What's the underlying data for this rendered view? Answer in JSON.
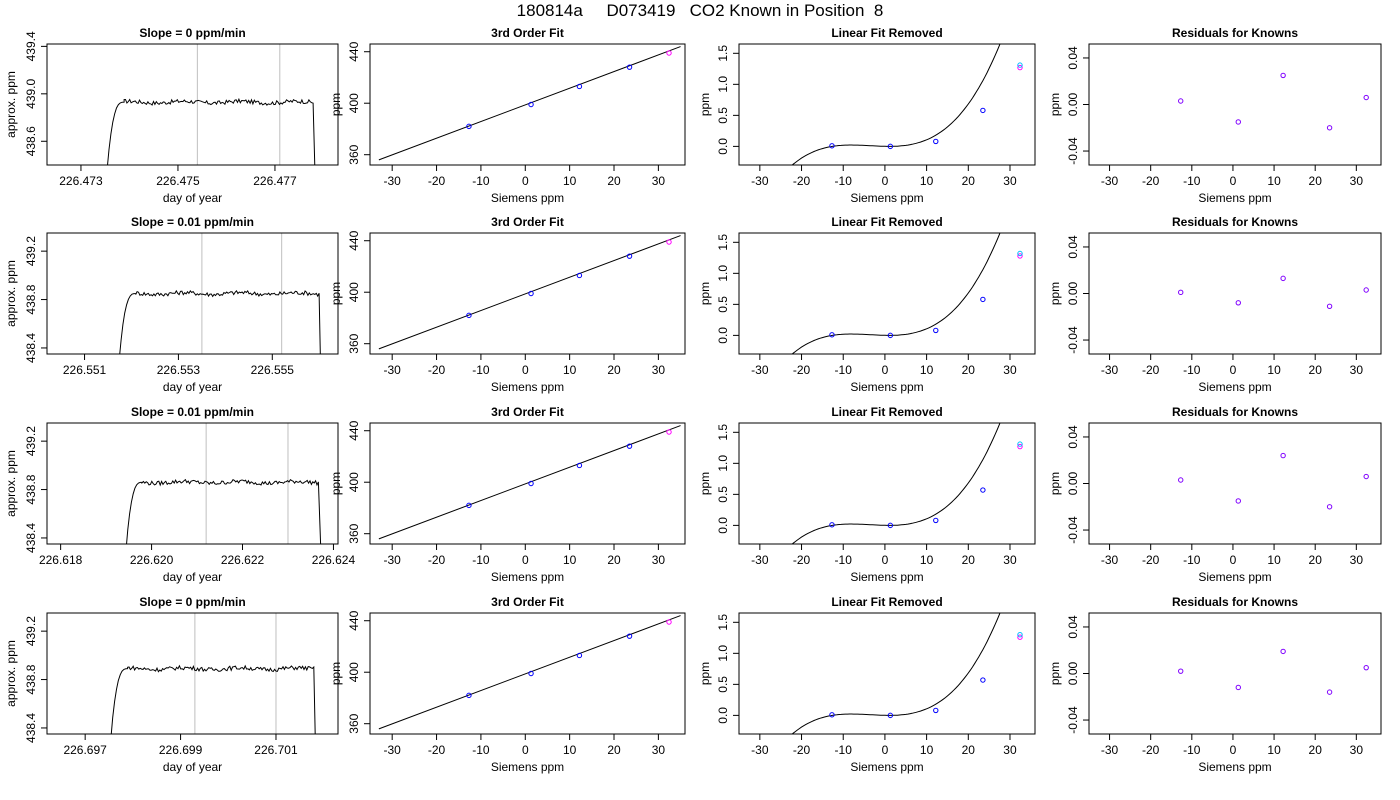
{
  "page_title": "180814a     D073419   CO2 Known in Position  8",
  "colors": {
    "trace": "#000000",
    "vline": "#bebebe",
    "point_blue": "#0000ff",
    "point_magenta": "#ff00ff",
    "point_cyan": "#00bfff",
    "point_purple": "#8000ff"
  },
  "chart_data": [
    {
      "row": 1,
      "panels": [
        {
          "type": "line",
          "title": "Slope =  0  ppm/min",
          "xlabel": "day of year",
          "ylabel": "approx. ppm",
          "xlim": [
            226.4723,
            226.4783
          ],
          "ylim": [
            438.4,
            439.42
          ],
          "xticks": [
            "226.473",
            "226.475",
            "226.477"
          ],
          "yticks": [
            "438.6",
            "439.0",
            "439.4"
          ],
          "vlines": [
            226.4754,
            226.4771
          ],
          "trace": {
            "start": 226.4735,
            "rise_end": 226.4738,
            "end": 226.4778,
            "level": 438.93
          }
        },
        {
          "type": "scatter_line",
          "title": "3rd Order Fit",
          "xlabel": "Siemens ppm",
          "ylabel": "ppm",
          "xlim": [
            -35,
            36
          ],
          "ylim": [
            352,
            446
          ],
          "xticks": [
            "-30",
            "-20",
            "-10",
            "0",
            "10",
            "20",
            "30"
          ],
          "yticks": [
            "360",
            "400",
            "440"
          ],
          "line": {
            "x": [
              -33,
              35
            ],
            "y": [
              356,
              444
            ]
          },
          "points": [
            {
              "x": -12.7,
              "y": 382
            },
            {
              "x": 1.3,
              "y": 399
            },
            {
              "x": 12.2,
              "y": 413
            },
            {
              "x": 23.5,
              "y": 428
            },
            {
              "x": 32.4,
              "y": 439
            }
          ]
        },
        {
          "type": "scatter_line",
          "title": "Linear Fit Removed",
          "xlabel": "Siemens ppm",
          "ylabel": "ppm",
          "xlim": [
            -35,
            36
          ],
          "ylim": [
            -0.3,
            1.65
          ],
          "xticks": [
            "-30",
            "-20",
            "-10",
            "0",
            "10",
            "20",
            "30"
          ],
          "yticks": [
            "0.0",
            "0.5",
            "1.0",
            "1.5"
          ],
          "curve": {
            "x0": 1,
            "a": 5.8e-05,
            "b": 0.00079
          },
          "points": [
            {
              "x": -12.7,
              "y": 0.01
            },
            {
              "x": 1.3,
              "y": 0.0
            },
            {
              "x": 12.2,
              "y": 0.08
            },
            {
              "x": 23.5,
              "y": 0.58
            },
            {
              "x": 32.4,
              "y": 1.27
            },
            {
              "x": 32.4,
              "y": 1.31
            }
          ]
        },
        {
          "type": "scatter",
          "title": "Residuals for Knowns",
          "xlabel": "Siemens ppm",
          "ylabel": "ppm",
          "xlim": [
            -35,
            36
          ],
          "ylim": [
            -0.052,
            0.052
          ],
          "xticks": [
            "-30",
            "-20",
            "-10",
            "0",
            "10",
            "20",
            "30"
          ],
          "yticks": [
            "-0.04",
            "0.00",
            "0.04"
          ],
          "points": [
            {
              "x": -12.7,
              "y": 0.003
            },
            {
              "x": 1.3,
              "y": -0.015
            },
            {
              "x": 12.2,
              "y": 0.025
            },
            {
              "x": 23.5,
              "y": -0.02
            },
            {
              "x": 32.4,
              "y": 0.006
            }
          ]
        }
      ]
    },
    {
      "row": 2,
      "panels": [
        {
          "type": "line",
          "title": "Slope =  0.01  ppm/min",
          "xlabel": "day of year",
          "ylabel": "approx. ppm",
          "xlim": [
            226.5502,
            226.5564
          ],
          "ylim": [
            438.35,
            439.35
          ],
          "xticks": [
            "226.551",
            "226.553",
            "226.555"
          ],
          "yticks": [
            "438.4",
            "438.8",
            "439.2"
          ],
          "vlines": [
            226.5535,
            226.5552
          ],
          "trace": {
            "start": 226.5517,
            "rise_end": 226.552,
            "end": 226.556,
            "level": 438.85
          }
        },
        {
          "type": "scatter_line",
          "title": "3rd Order Fit",
          "xlabel": "Siemens ppm",
          "ylabel": "ppm",
          "xlim": [
            -35,
            36
          ],
          "ylim": [
            352,
            446
          ],
          "xticks": [
            "-30",
            "-20",
            "-10",
            "0",
            "10",
            "20",
            "30"
          ],
          "yticks": [
            "360",
            "400",
            "440"
          ],
          "line": {
            "x": [
              -33,
              35
            ],
            "y": [
              356,
              444
            ]
          },
          "points": [
            {
              "x": -12.7,
              "y": 382
            },
            {
              "x": 1.3,
              "y": 399
            },
            {
              "x": 12.2,
              "y": 413
            },
            {
              "x": 23.5,
              "y": 428
            },
            {
              "x": 32.4,
              "y": 439
            }
          ]
        },
        {
          "type": "scatter_line",
          "title": "Linear Fit Removed",
          "xlabel": "Siemens ppm",
          "ylabel": "ppm",
          "xlim": [
            -35,
            36
          ],
          "ylim": [
            -0.3,
            1.65
          ],
          "xticks": [
            "-30",
            "-20",
            "-10",
            "0",
            "10",
            "20",
            "30"
          ],
          "yticks": [
            "0.0",
            "0.5",
            "1.0",
            "1.5"
          ],
          "curve": {
            "x0": 1,
            "a": 5.8e-05,
            "b": 0.00079
          },
          "points": [
            {
              "x": -12.7,
              "y": 0.01
            },
            {
              "x": 1.3,
              "y": 0.0
            },
            {
              "x": 12.2,
              "y": 0.08
            },
            {
              "x": 23.5,
              "y": 0.58
            },
            {
              "x": 32.4,
              "y": 1.28
            },
            {
              "x": 32.4,
              "y": 1.32
            }
          ]
        },
        {
          "type": "scatter",
          "title": "Residuals for Knowns",
          "xlabel": "Siemens ppm",
          "ylabel": "ppm",
          "xlim": [
            -35,
            36
          ],
          "ylim": [
            -0.052,
            0.052
          ],
          "xticks": [
            "-30",
            "-20",
            "-10",
            "0",
            "10",
            "20",
            "30"
          ],
          "yticks": [
            "-0.04",
            "0.00",
            "0.04"
          ],
          "points": [
            {
              "x": -12.7,
              "y": 0.001
            },
            {
              "x": 1.3,
              "y": -0.008
            },
            {
              "x": 12.2,
              "y": 0.013
            },
            {
              "x": 23.5,
              "y": -0.011
            },
            {
              "x": 32.4,
              "y": 0.003
            }
          ]
        }
      ]
    },
    {
      "row": 3,
      "panels": [
        {
          "type": "line",
          "title": "Slope =  0.01  ppm/min",
          "xlabel": "day of year",
          "ylabel": "approx. ppm",
          "xlim": [
            226.6177,
            226.6241
          ],
          "ylim": [
            438.35,
            439.35
          ],
          "xticks": [
            "226.618",
            "226.620",
            "226.622",
            "226.624"
          ],
          "yticks": [
            "438.4",
            "438.8",
            "439.2"
          ],
          "vlines": [
            226.6212,
            226.623
          ],
          "trace": {
            "start": 226.6194,
            "rise_end": 226.6197,
            "end": 226.6237,
            "level": 438.86
          }
        },
        {
          "type": "scatter_line",
          "title": "3rd Order Fit",
          "xlabel": "Siemens ppm",
          "ylabel": "ppm",
          "xlim": [
            -35,
            36
          ],
          "ylim": [
            352,
            446
          ],
          "xticks": [
            "-30",
            "-20",
            "-10",
            "0",
            "10",
            "20",
            "30"
          ],
          "yticks": [
            "360",
            "400",
            "440"
          ],
          "line": {
            "x": [
              -33,
              35
            ],
            "y": [
              356,
              444
            ]
          },
          "points": [
            {
              "x": -12.7,
              "y": 382
            },
            {
              "x": 1.3,
              "y": 399
            },
            {
              "x": 12.2,
              "y": 413
            },
            {
              "x": 23.5,
              "y": 428
            },
            {
              "x": 32.4,
              "y": 439
            }
          ]
        },
        {
          "type": "scatter_line",
          "title": "Linear Fit Removed",
          "xlabel": "Siemens ppm",
          "ylabel": "ppm",
          "xlim": [
            -35,
            36
          ],
          "ylim": [
            -0.3,
            1.65
          ],
          "xticks": [
            "-30",
            "-20",
            "-10",
            "0",
            "10",
            "20",
            "30"
          ],
          "yticks": [
            "0.0",
            "0.5",
            "1.0",
            "1.5"
          ],
          "curve": {
            "x0": 1,
            "a": 5.8e-05,
            "b": 0.00079
          },
          "points": [
            {
              "x": -12.7,
              "y": 0.01
            },
            {
              "x": 1.3,
              "y": 0.0
            },
            {
              "x": 12.2,
              "y": 0.08
            },
            {
              "x": 23.5,
              "y": 0.57
            },
            {
              "x": 32.4,
              "y": 1.27
            },
            {
              "x": 32.4,
              "y": 1.31
            }
          ]
        },
        {
          "type": "scatter",
          "title": "Residuals for Knowns",
          "xlabel": "Siemens ppm",
          "ylabel": "ppm",
          "xlim": [
            -35,
            36
          ],
          "ylim": [
            -0.052,
            0.052
          ],
          "xticks": [
            "-30",
            "-20",
            "-10",
            "0",
            "10",
            "20",
            "30"
          ],
          "yticks": [
            "-0.04",
            "0.00",
            "0.04"
          ],
          "points": [
            {
              "x": -12.7,
              "y": 0.003
            },
            {
              "x": 1.3,
              "y": -0.015
            },
            {
              "x": 12.2,
              "y": 0.024
            },
            {
              "x": 23.5,
              "y": -0.02
            },
            {
              "x": 32.4,
              "y": 0.006
            }
          ]
        }
      ]
    },
    {
      "row": 4,
      "panels": [
        {
          "type": "line",
          "title": "Slope =  0  ppm/min",
          "xlabel": "day of year",
          "ylabel": "approx. ppm",
          "xlim": [
            226.6962,
            226.7023
          ],
          "ylim": [
            438.35,
            439.35
          ],
          "xticks": [
            "226.697",
            "226.699",
            "226.701"
          ],
          "yticks": [
            "438.4",
            "438.8",
            "439.2"
          ],
          "vlines": [
            226.6993,
            226.701
          ],
          "trace": {
            "start": 226.6975,
            "rise_end": 226.6978,
            "end": 226.7018,
            "level": 438.89
          }
        },
        {
          "type": "scatter_line",
          "title": "3rd Order Fit",
          "xlabel": "Siemens ppm",
          "ylabel": "ppm",
          "xlim": [
            -35,
            36
          ],
          "ylim": [
            352,
            446
          ],
          "xticks": [
            "-30",
            "-20",
            "-10",
            "0",
            "10",
            "20",
            "30"
          ],
          "yticks": [
            "360",
            "400",
            "440"
          ],
          "line": {
            "x": [
              -33,
              35
            ],
            "y": [
              356,
              444
            ]
          },
          "points": [
            {
              "x": -12.7,
              "y": 382
            },
            {
              "x": 1.3,
              "y": 399
            },
            {
              "x": 12.2,
              "y": 413
            },
            {
              "x": 23.5,
              "y": 428
            },
            {
              "x": 32.4,
              "y": 439
            }
          ]
        },
        {
          "type": "scatter_line",
          "title": "Linear Fit Removed",
          "xlabel": "Siemens ppm",
          "ylabel": "ppm",
          "xlim": [
            -35,
            36
          ],
          "ylim": [
            -0.3,
            1.65
          ],
          "xticks": [
            "-30",
            "-20",
            "-10",
            "0",
            "10",
            "20",
            "30"
          ],
          "yticks": [
            "0.0",
            "0.5",
            "1.0",
            "1.5"
          ],
          "curve": {
            "x0": 1,
            "a": 5.8e-05,
            "b": 0.00079
          },
          "points": [
            {
              "x": -12.7,
              "y": 0.01
            },
            {
              "x": 1.3,
              "y": 0.0
            },
            {
              "x": 12.2,
              "y": 0.08
            },
            {
              "x": 23.5,
              "y": 0.57
            },
            {
              "x": 32.4,
              "y": 1.26
            },
            {
              "x": 32.4,
              "y": 1.3
            }
          ]
        },
        {
          "type": "scatter",
          "title": "Residuals for Knowns",
          "xlabel": "Siemens ppm",
          "ylabel": "ppm",
          "xlim": [
            -35,
            36
          ],
          "ylim": [
            -0.052,
            0.052
          ],
          "xticks": [
            "-30",
            "-20",
            "-10",
            "0",
            "10",
            "20",
            "30"
          ],
          "yticks": [
            "-0.04",
            "0.00",
            "0.04"
          ],
          "points": [
            {
              "x": -12.7,
              "y": 0.002
            },
            {
              "x": 1.3,
              "y": -0.012
            },
            {
              "x": 12.2,
              "y": 0.019
            },
            {
              "x": 23.5,
              "y": -0.016
            },
            {
              "x": 32.4,
              "y": 0.005
            }
          ]
        }
      ]
    }
  ]
}
